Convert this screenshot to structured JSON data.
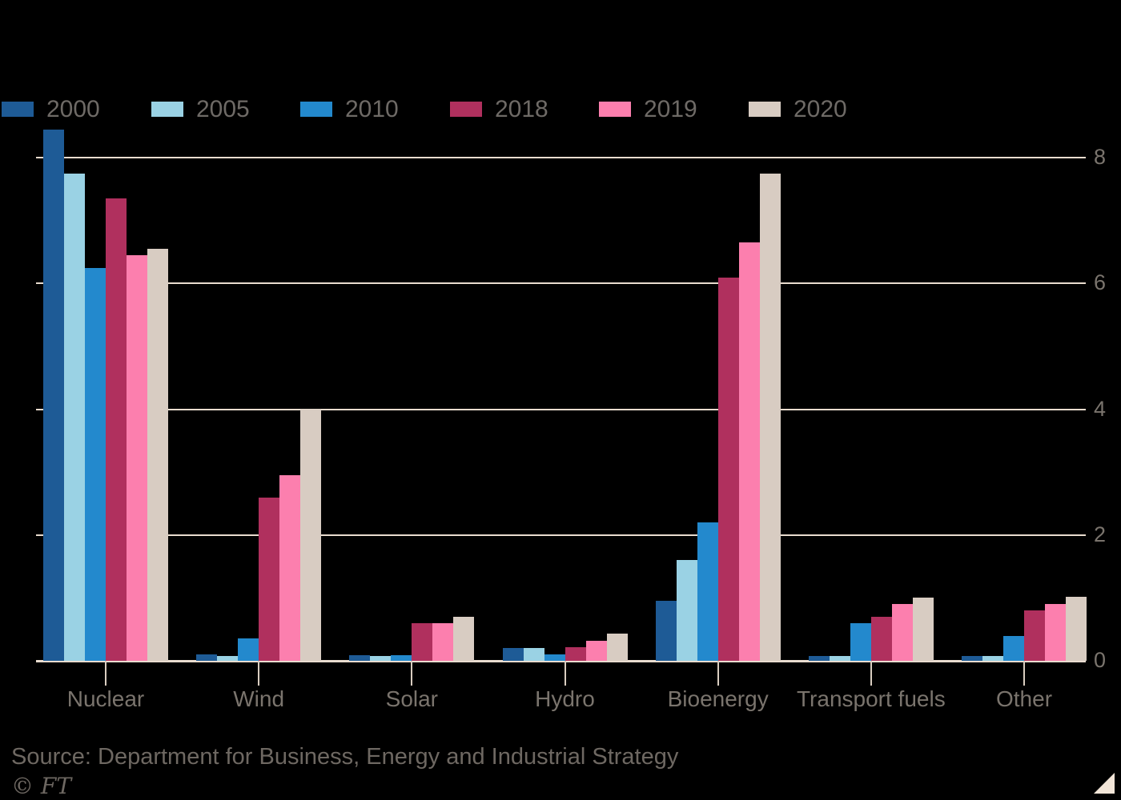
{
  "legend": {
    "items": [
      {
        "label": "2000",
        "color": "#1e5b96"
      },
      {
        "label": "2005",
        "color": "#9ad2e4"
      },
      {
        "label": "2010",
        "color": "#2389cd"
      },
      {
        "label": "2018",
        "color": "#b0305e"
      },
      {
        "label": "2019",
        "color": "#fc7fae"
      },
      {
        "label": "2020",
        "color": "#d8ccc2"
      }
    ]
  },
  "chart_data": {
    "type": "bar",
    "title": "",
    "categories": [
      "Nuclear",
      "Wind",
      "Solar",
      "Hydro",
      "Bioenergy",
      "Transport fuels",
      "Other"
    ],
    "series": [
      {
        "name": "2000",
        "color": "#1e5b96",
        "values": [
          8.45,
          0.1,
          0.09,
          0.2,
          0.95,
          0.08,
          0.08
        ]
      },
      {
        "name": "2005",
        "color": "#9ad2e4",
        "values": [
          7.75,
          0.07,
          0.08,
          0.2,
          1.6,
          0.08,
          0.07
        ]
      },
      {
        "name": "2010",
        "color": "#2389cd",
        "values": [
          6.25,
          0.35,
          0.09,
          0.1,
          2.2,
          0.6,
          0.4
        ]
      },
      {
        "name": "2018",
        "color": "#b0305e",
        "values": [
          7.35,
          2.6,
          0.6,
          0.22,
          6.1,
          0.7,
          0.8
        ]
      },
      {
        "name": "2019",
        "color": "#fc7fae",
        "values": [
          6.45,
          2.95,
          0.6,
          0.32,
          6.65,
          0.9,
          0.9
        ]
      },
      {
        "name": "2020",
        "color": "#d8ccc2",
        "values": [
          6.55,
          4.0,
          0.7,
          0.43,
          7.75,
          1.0,
          1.02
        ]
      }
    ],
    "xlabel": "",
    "ylabel": "",
    "ylim": [
      0,
      8
    ],
    "yticks": [
      0,
      2,
      4,
      6,
      8
    ],
    "grid": true,
    "legend_position": "top",
    "y_axis_side": "right"
  },
  "footer": {
    "source": "Source: Department for Business, Energy and Industrial Strategy",
    "credit": "© FT"
  },
  "colors": {
    "background": "#000000",
    "gridline": "#e9dccf",
    "axis_text": "#7a746d",
    "legend_text": "#6e6a66",
    "source_text": "#6e6862",
    "triangle": "#f2e5d8"
  }
}
